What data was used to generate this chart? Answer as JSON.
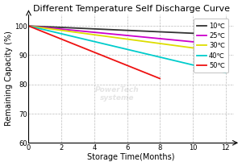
{
  "title": "Different Temperature Self Discharge Curve",
  "xlabel": "Storage Time(Months)",
  "ylabel": "Remaining Capacity (%)",
  "xlim": [
    0,
    12.5
  ],
  "ylim": [
    60,
    104
  ],
  "xticks": [
    0,
    2,
    4,
    6,
    8,
    10,
    12
  ],
  "yticks": [
    60,
    70,
    80,
    90,
    100
  ],
  "series": [
    {
      "label": "10℃",
      "color": "#333333",
      "x": [
        0,
        12
      ],
      "y": [
        100,
        97.0
      ]
    },
    {
      "label": "25℃",
      "color": "#cc00cc",
      "x": [
        0,
        12
      ],
      "y": [
        100,
        93.5
      ]
    },
    {
      "label": "30℃",
      "color": "#dddd00",
      "x": [
        0,
        12
      ],
      "y": [
        100,
        91.0
      ]
    },
    {
      "label": "40℃",
      "color": "#00cccc",
      "x": [
        0,
        12
      ],
      "y": [
        100,
        84.0
      ]
    },
    {
      "label": "50℃",
      "color": "#ee1111",
      "x": [
        0,
        8
      ],
      "y": [
        100,
        82.0
      ]
    }
  ],
  "background_color": "#ffffff",
  "title_fontsize": 8,
  "axis_fontsize": 7,
  "tick_fontsize": 6,
  "legend_fontsize": 6,
  "linewidth": 1.3
}
